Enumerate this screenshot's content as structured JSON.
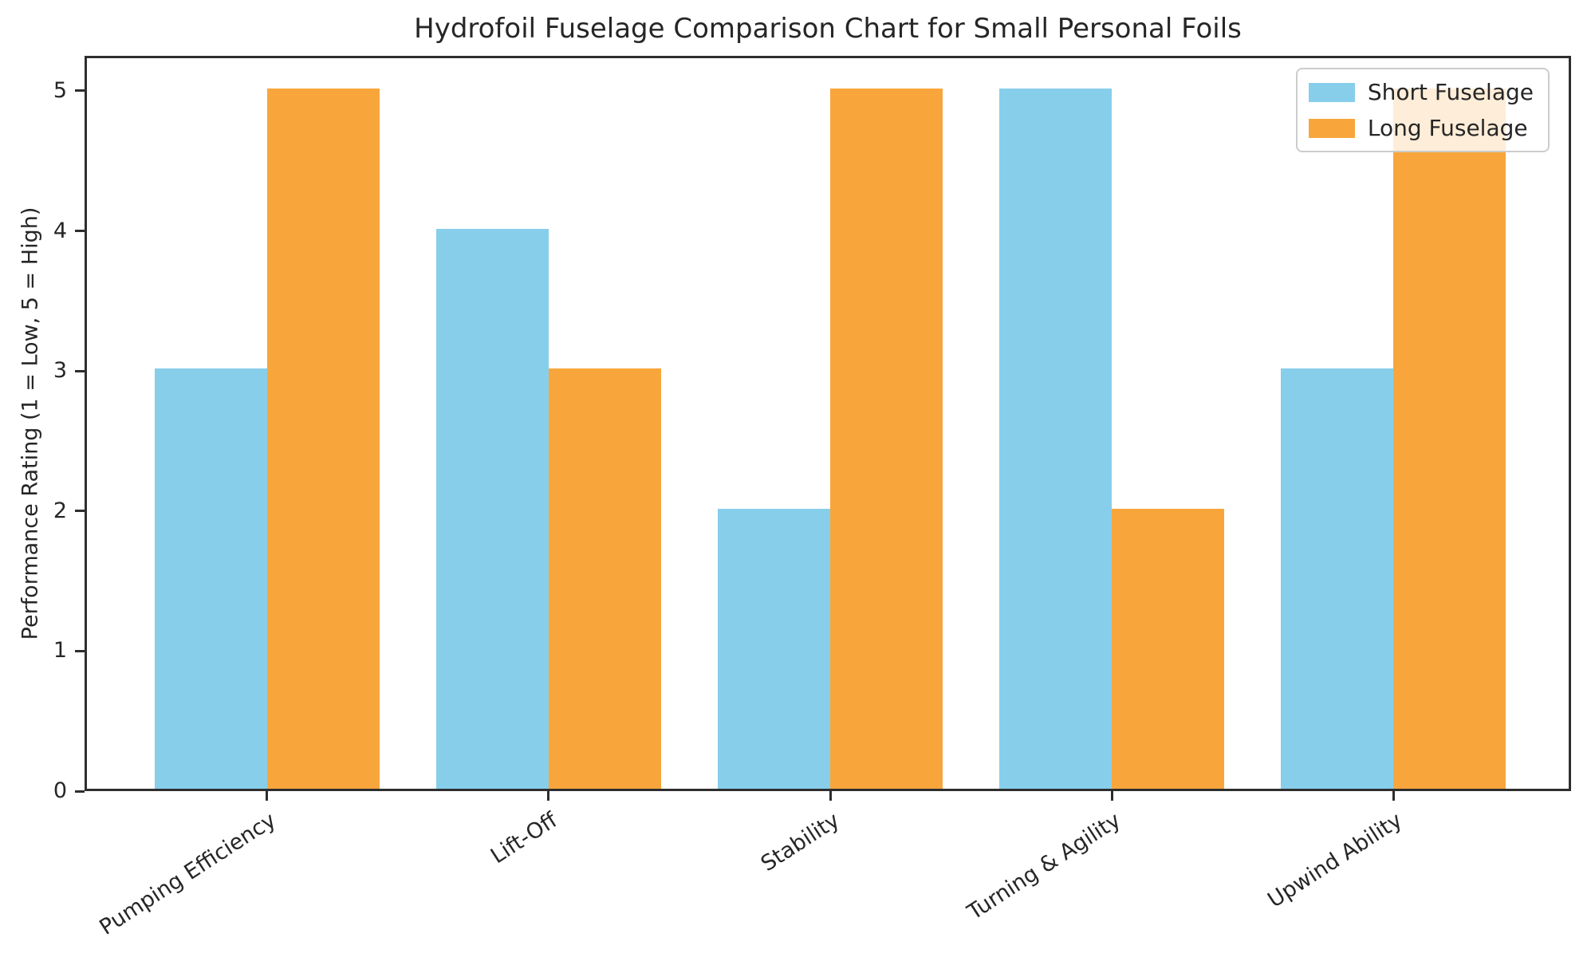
{
  "chart_data": {
    "type": "bar",
    "title": "Hydrofoil Fuselage Comparison Chart for Small Personal Foils",
    "xlabel": "",
    "ylabel": "Performance Rating (1 = Low, 5 = High)",
    "categories": [
      "Pumping Efficiency",
      "Lift-Off",
      "Stability",
      "Turning & Agility",
      "Upwind Ability"
    ],
    "series": [
      {
        "name": "Short Fuselage",
        "color": "#87CEEB",
        "values": [
          3,
          4,
          2,
          5,
          3
        ]
      },
      {
        "name": "Long Fuselage",
        "color": "#F8A63C",
        "values": [
          5,
          3,
          5,
          2,
          5
        ]
      }
    ],
    "y_ticks": [
      0,
      1,
      2,
      3,
      4,
      5
    ],
    "ylim": [
      0,
      5.25
    ],
    "grid": false,
    "legend_position": "upper right",
    "background_color": "#ffffff",
    "axis_color": "#2e2e2e",
    "text_color": "#262626"
  }
}
